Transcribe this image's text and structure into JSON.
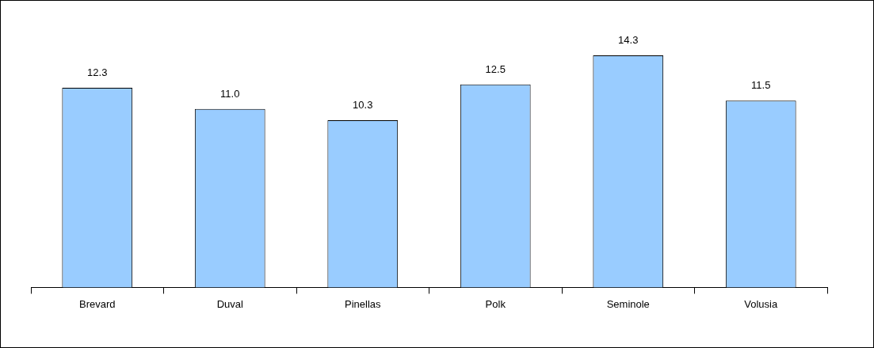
{
  "chart_data": {
    "type": "bar",
    "categories": [
      "Brevard",
      "Duval",
      "Pinellas",
      "Polk",
      "Seminole",
      "Volusia"
    ],
    "values": [
      12.3,
      11.0,
      10.3,
      12.5,
      14.3,
      11.5
    ],
    "value_labels": [
      "12.3",
      "11.0",
      "10.3",
      "12.5",
      "14.3",
      "11.5"
    ],
    "color": "#99ccff",
    "grid": false,
    "legend": false
  }
}
